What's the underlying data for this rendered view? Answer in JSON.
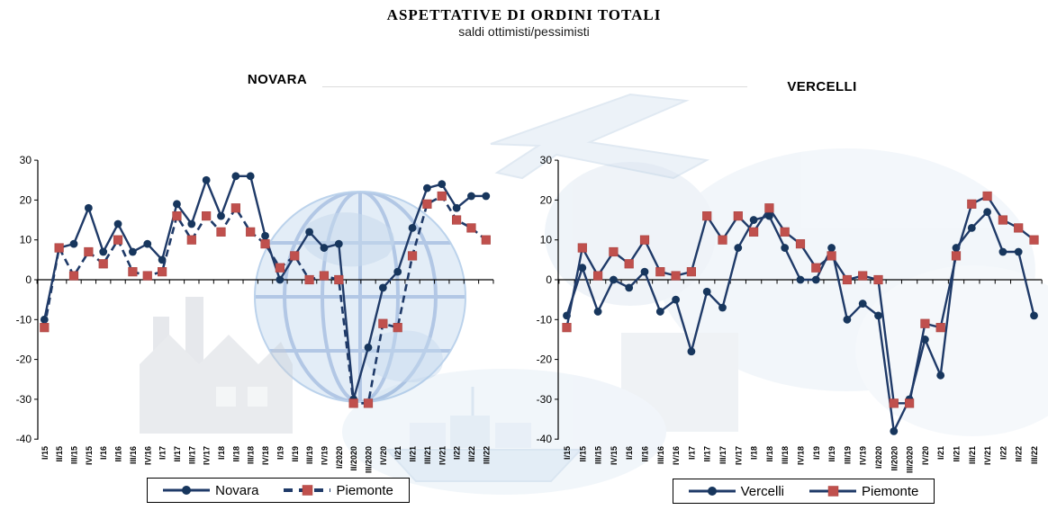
{
  "header": {
    "title": "ASPETTATIVE DI ORDINI TOTALI",
    "subtitle": "saldi ottimisti/pessimisti"
  },
  "colors": {
    "line_navy": "#1f3a68",
    "marker_circle": "#17365d",
    "marker_square": "#c0504d",
    "marker_square_border": "#a8423f",
    "axis": "#000000",
    "text": "#000000"
  },
  "y_axis": {
    "min": -40,
    "max": 30,
    "step": 10,
    "ticks": [
      30,
      20,
      10,
      0,
      -10,
      -20,
      -30,
      -40
    ]
  },
  "chart_data": [
    {
      "type": "line",
      "title": "NOVARA",
      "legend_position": "bottom",
      "grid": false,
      "ylim": [
        -40,
        30
      ],
      "xlabel": "",
      "ylabel": "",
      "categories": [
        "I/15",
        "II/15",
        "III/15",
        "IV/15",
        "I/16",
        "II/16",
        "III/16",
        "IV/16",
        "I/17",
        "II/17",
        "III/17",
        "IV/17",
        "I/18",
        "II/18",
        "III/18",
        "IV/18",
        "I/19",
        "II/19",
        "III/19",
        "IV/19",
        "I/2020",
        "II/2020",
        "III/2020",
        "IV/20",
        "I/21",
        "II/21",
        "III/21",
        "IV/21",
        "I/22",
        "II/22",
        "III/22"
      ],
      "series": [
        {
          "name": "Novara",
          "style": "solid",
          "marker": "circle",
          "values": [
            -10,
            8,
            9,
            18,
            7,
            14,
            7,
            9,
            5,
            19,
            14,
            25,
            16,
            26,
            26,
            11,
            0,
            6,
            12,
            8,
            9,
            -30,
            -17,
            -2,
            2,
            13,
            23,
            24,
            18,
            21,
            21
          ]
        },
        {
          "name": "Piemonte",
          "style": "dashed",
          "marker": "square",
          "values": [
            -12,
            8,
            1,
            7,
            4,
            10,
            2,
            1,
            2,
            16,
            10,
            16,
            12,
            18,
            12,
            9,
            3,
            6,
            0,
            1,
            0,
            -31,
            -31,
            -11,
            -12,
            6,
            19,
            21,
            15,
            13,
            10
          ]
        }
      ]
    },
    {
      "type": "line",
      "title": "VERCELLI",
      "legend_position": "bottom",
      "grid": false,
      "ylim": [
        -40,
        30
      ],
      "xlabel": "",
      "ylabel": "",
      "categories": [
        "I/15",
        "II/15",
        "III/15",
        "IV/15",
        "I/16",
        "II/16",
        "III/16",
        "IV/16",
        "I/17",
        "II/17",
        "III/17",
        "IV/17",
        "I/18",
        "II/18",
        "III/18",
        "IV/18",
        "I/19",
        "II/19",
        "III/19",
        "IV/19",
        "I/2020",
        "II/2020",
        "III/2020",
        "IV/20",
        "I/21",
        "II/21",
        "III/21",
        "IV/21",
        "I/22",
        "II/22",
        "III/22"
      ],
      "series": [
        {
          "name": "Vercelli",
          "style": "solid",
          "marker": "circle",
          "values": [
            -9,
            3,
            -8,
            0,
            -2,
            2,
            -8,
            -5,
            -18,
            -3,
            -7,
            8,
            15,
            16,
            8,
            0,
            0,
            8,
            -10,
            -6,
            -9,
            -38,
            -30,
            -15,
            -24,
            8,
            13,
            17,
            7,
            7,
            -9
          ]
        },
        {
          "name": "Piemonte",
          "style": "solid",
          "marker": "square",
          "values": [
            -12,
            8,
            1,
            7,
            4,
            10,
            2,
            1,
            2,
            16,
            10,
            16,
            12,
            18,
            12,
            9,
            3,
            6,
            0,
            1,
            0,
            -31,
            -31,
            -11,
            -12,
            6,
            19,
            21,
            15,
            13,
            10
          ]
        }
      ]
    }
  ]
}
